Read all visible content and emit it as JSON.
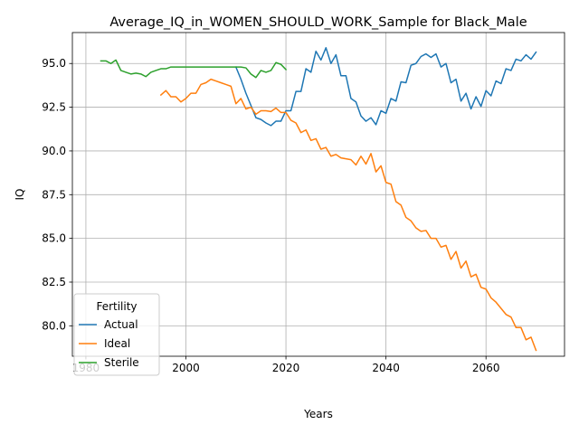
{
  "chart_data": {
    "type": "line",
    "title": "Average_IQ_in_WOMEN_SHOULD_WORK_Sample for Black_Male",
    "xlabel": "Years",
    "ylabel": "IQ",
    "xlim": [
      1977.3,
      2075.7
    ],
    "ylim": [
      78.26,
      96.77
    ],
    "xticks": [
      1980,
      2000,
      2020,
      2040,
      2060
    ],
    "yticks": [
      80.0,
      82.5,
      85.0,
      87.5,
      90.0,
      92.5,
      95.0
    ],
    "ytick_labels": [
      "80.0",
      "82.5",
      "85.0",
      "87.5",
      "90.0",
      "92.5",
      "95.0"
    ],
    "grid": true,
    "legend": {
      "title": "Fertility",
      "location": "lower-left"
    },
    "series": [
      {
        "name": "Actual",
        "color": "#1f77b4",
        "x": [
          2010,
          2011,
          2012,
          2013,
          2014,
          2015,
          2016,
          2017,
          2018,
          2019,
          2020,
          2021,
          2022,
          2023,
          2024,
          2025,
          2026,
          2027,
          2028,
          2029,
          2030,
          2031,
          2032,
          2033,
          2034,
          2035,
          2036,
          2037,
          2038,
          2039,
          2040,
          2041,
          2042,
          2043,
          2044,
          2045,
          2046,
          2047,
          2048,
          2049,
          2050,
          2051,
          2052,
          2053,
          2054,
          2055,
          2056,
          2057,
          2058,
          2059,
          2060,
          2061,
          2062,
          2063,
          2064,
          2065,
          2066,
          2067,
          2068,
          2069,
          2070
        ],
        "y": [
          94.8,
          94.1,
          93.3,
          92.6,
          91.9,
          91.8,
          91.6,
          91.45,
          91.7,
          91.7,
          92.3,
          92.3,
          93.4,
          93.4,
          94.7,
          94.5,
          95.7,
          95.2,
          95.9,
          95.0,
          95.5,
          94.3,
          94.3,
          93.0,
          92.8,
          92.0,
          91.7,
          91.9,
          91.5,
          92.3,
          92.15,
          93.0,
          92.85,
          93.95,
          93.9,
          94.9,
          95.0,
          95.4,
          95.55,
          95.35,
          95.55,
          94.8,
          95.0,
          93.9,
          94.1,
          92.85,
          93.3,
          92.4,
          93.1,
          92.55,
          93.45,
          93.15,
          94.0,
          93.85,
          94.7,
          94.6,
          95.25,
          95.15,
          95.5,
          95.25,
          95.65
        ]
      },
      {
        "name": "Ideal",
        "color": "#ff7f0e",
        "x": [
          1995,
          1996,
          1997,
          1998,
          1999,
          2000,
          2001,
          2002,
          2003,
          2004,
          2005,
          2006,
          2007,
          2008,
          2009,
          2010,
          2011,
          2012,
          2013,
          2014,
          2015,
          2016,
          2017,
          2018,
          2019,
          2020,
          2021,
          2022,
          2023,
          2024,
          2025,
          2026,
          2027,
          2028,
          2029,
          2030,
          2031,
          2032,
          2033,
          2034,
          2035,
          2036,
          2037,
          2038,
          2039,
          2040,
          2041,
          2042,
          2043,
          2044,
          2045,
          2046,
          2047,
          2048,
          2049,
          2050,
          2051,
          2052,
          2053,
          2054,
          2055,
          2056,
          2057,
          2058,
          2059,
          2060,
          2061,
          2062,
          2063,
          2064,
          2065,
          2066,
          2067,
          2068,
          2069,
          2070
        ],
        "y": [
          93.2,
          93.45,
          93.1,
          93.1,
          92.8,
          93.0,
          93.3,
          93.3,
          93.8,
          93.9,
          94.1,
          94.0,
          93.9,
          93.8,
          93.7,
          92.7,
          93.0,
          92.4,
          92.5,
          92.1,
          92.3,
          92.3,
          92.25,
          92.45,
          92.2,
          92.2,
          91.75,
          91.6,
          91.05,
          91.2,
          90.6,
          90.7,
          90.1,
          90.2,
          89.7,
          89.8,
          89.6,
          89.55,
          89.5,
          89.2,
          89.7,
          89.25,
          89.85,
          88.8,
          89.15,
          88.2,
          88.1,
          87.1,
          86.9,
          86.2,
          86.0,
          85.6,
          85.4,
          85.45,
          85.0,
          85.0,
          84.5,
          84.6,
          83.8,
          84.25,
          83.3,
          83.7,
          82.8,
          82.95,
          82.2,
          82.1,
          81.6,
          81.35,
          81.0,
          80.65,
          80.5,
          79.9,
          79.9,
          79.2,
          79.35,
          78.6
        ]
      },
      {
        "name": "Sterile",
        "color": "#2ca02c",
        "x": [
          1983,
          1984,
          1985,
          1986,
          1987,
          1988,
          1989,
          1990,
          1991,
          1992,
          1993,
          1994,
          1995,
          1996,
          1997,
          1998,
          1999,
          2000,
          2001,
          2002,
          2003,
          2004,
          2005,
          2006,
          2007,
          2008,
          2009,
          2010,
          2011,
          2012,
          2013,
          2014,
          2015,
          2016,
          2017,
          2018,
          2019,
          2020
        ],
        "y": [
          95.15,
          95.15,
          95.0,
          95.2,
          94.6,
          94.5,
          94.4,
          94.45,
          94.4,
          94.25,
          94.5,
          94.6,
          94.7,
          94.7,
          94.8,
          94.8,
          94.8,
          94.8,
          94.8,
          94.8,
          94.8,
          94.8,
          94.8,
          94.8,
          94.8,
          94.8,
          94.8,
          94.8,
          94.8,
          94.75,
          94.4,
          94.2,
          94.6,
          94.5,
          94.6,
          95.05,
          94.95,
          94.65
        ]
      }
    ]
  }
}
